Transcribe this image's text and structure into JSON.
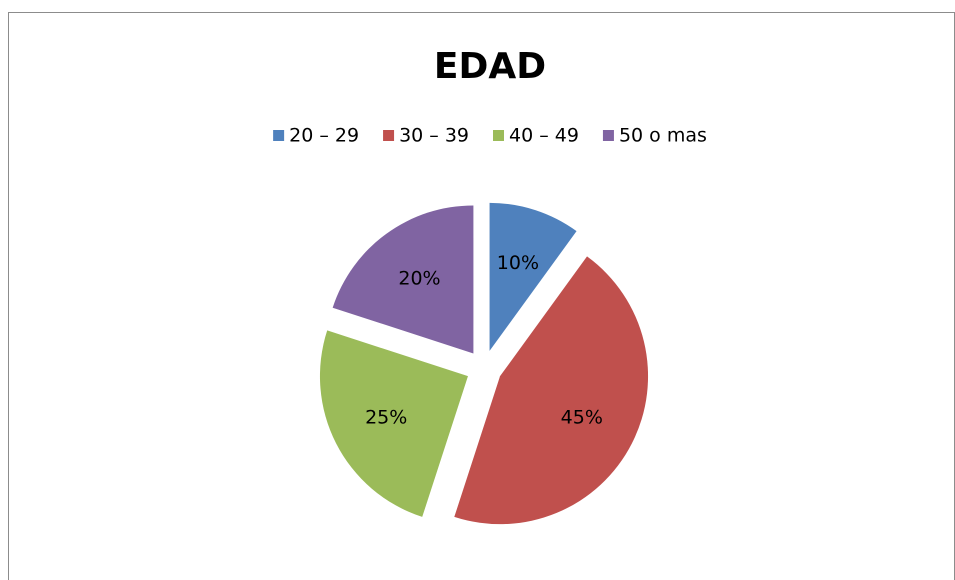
{
  "chart_data": {
    "type": "pie",
    "title": "EDAD",
    "categories": [
      "20 – 29",
      "30 – 39",
      "40 – 49",
      "50 o mas"
    ],
    "values": [
      10,
      45,
      25,
      20
    ],
    "value_labels": [
      "10%",
      "45%",
      "25%",
      "20%"
    ],
    "colors": [
      "#4f81bd",
      "#c0504d",
      "#9bbb59",
      "#8064a2"
    ],
    "legend": "top"
  }
}
